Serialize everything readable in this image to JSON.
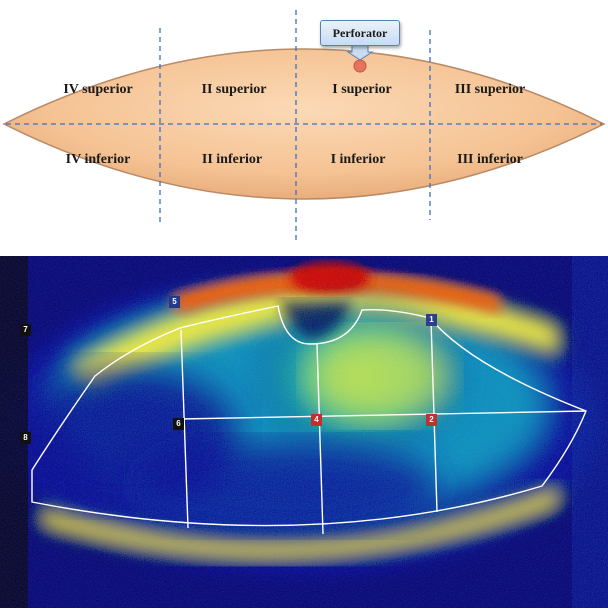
{
  "diagram": {
    "callout": "Perforator",
    "zones": [
      {
        "id": "iv-sup",
        "label": "IV superior"
      },
      {
        "id": "ii-sup",
        "label": "II superior"
      },
      {
        "id": "i-sup",
        "label": "I superior"
      },
      {
        "id": "iii-sup",
        "label": "III superior"
      },
      {
        "id": "iv-inf",
        "label": "IV inferior"
      },
      {
        "id": "ii-inf",
        "label": "II inferior"
      },
      {
        "id": "i-inf",
        "label": "I inferior"
      },
      {
        "id": "iii-inf",
        "label": "III inferior"
      }
    ],
    "colors": {
      "flap_fill": "#f7c79a",
      "flap_edge": "#c79a74",
      "divider": "#3a6fc4",
      "perforator_dot": "#e5735d"
    }
  },
  "scan": {
    "markers": [
      {
        "label": "1",
        "color": "#2c3f8f"
      },
      {
        "label": "2",
        "color": "#c03030"
      },
      {
        "label": "4",
        "color": "#c03030"
      },
      {
        "label": "5",
        "color": "#223a8a"
      },
      {
        "label": "6",
        "color": "#111111"
      },
      {
        "label": "7",
        "color": "#111111"
      },
      {
        "label": "8",
        "color": "#111111"
      }
    ]
  }
}
